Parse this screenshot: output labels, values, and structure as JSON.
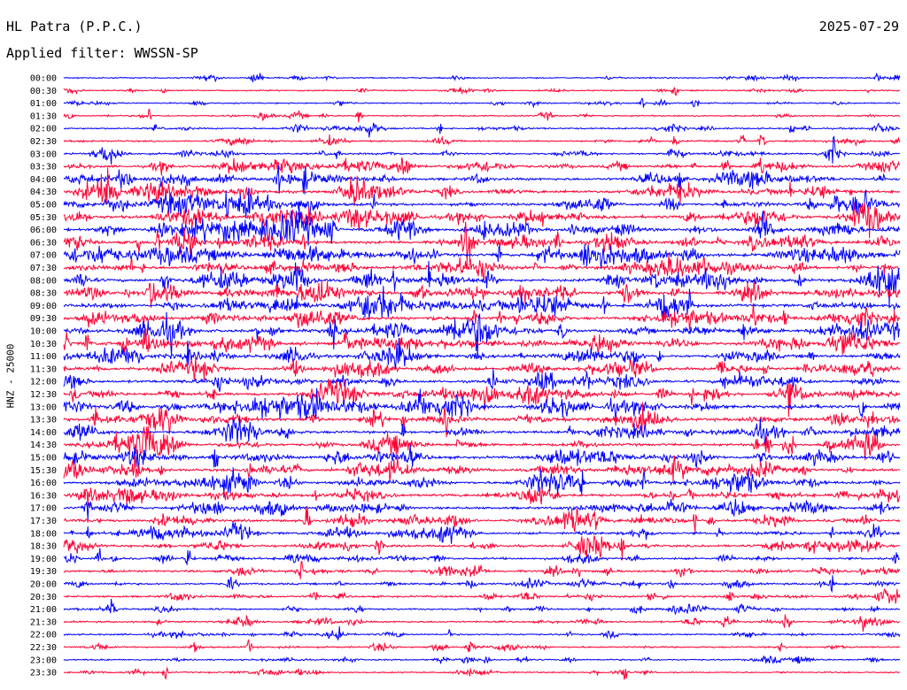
{
  "header": {
    "station": "HL Patra (P.P.C.)",
    "date": "2025-07-29",
    "filter_label": "Applied filter:",
    "filter_value": "WWSSN-SP"
  },
  "chart_data": {
    "type": "line",
    "subtype": "helicorder",
    "ylabel": "HNZ - 25000",
    "row_labels": [
      "00:00",
      "00:30",
      "01:00",
      "01:30",
      "02:00",
      "02:30",
      "03:00",
      "03:30",
      "04:00",
      "04:30",
      "05:00",
      "05:30",
      "06:00",
      "06:30",
      "07:00",
      "07:30",
      "08:00",
      "08:30",
      "09:00",
      "09:30",
      "10:00",
      "10:30",
      "11:00",
      "11:30",
      "12:00",
      "12:30",
      "13:00",
      "13:30",
      "14:00",
      "14:30",
      "15:00",
      "15:30",
      "16:00",
      "16:30",
      "17:00",
      "17:30",
      "18:00",
      "18:30",
      "19:00",
      "19:30",
      "20:00",
      "20:30",
      "21:00",
      "21:30",
      "22:00",
      "22:30",
      "23:00",
      "23:30"
    ],
    "row_activity": [
      0.25,
      0.22,
      0.25,
      0.3,
      0.4,
      0.4,
      0.5,
      0.65,
      0.8,
      0.85,
      0.9,
      0.95,
      1.0,
      0.95,
      1.0,
      0.95,
      0.95,
      0.9,
      0.95,
      0.9,
      0.95,
      0.9,
      0.9,
      0.9,
      0.85,
      0.85,
      0.9,
      0.85,
      0.85,
      0.8,
      0.8,
      0.8,
      0.8,
      0.75,
      0.7,
      0.7,
      0.65,
      0.65,
      0.6,
      0.6,
      0.55,
      0.5,
      0.45,
      0.45,
      0.4,
      0.4,
      0.35,
      0.3
    ],
    "series": [
      {
        "color": "#0000ff"
      },
      {
        "color": "#ff0033"
      }
    ],
    "grid": false
  }
}
